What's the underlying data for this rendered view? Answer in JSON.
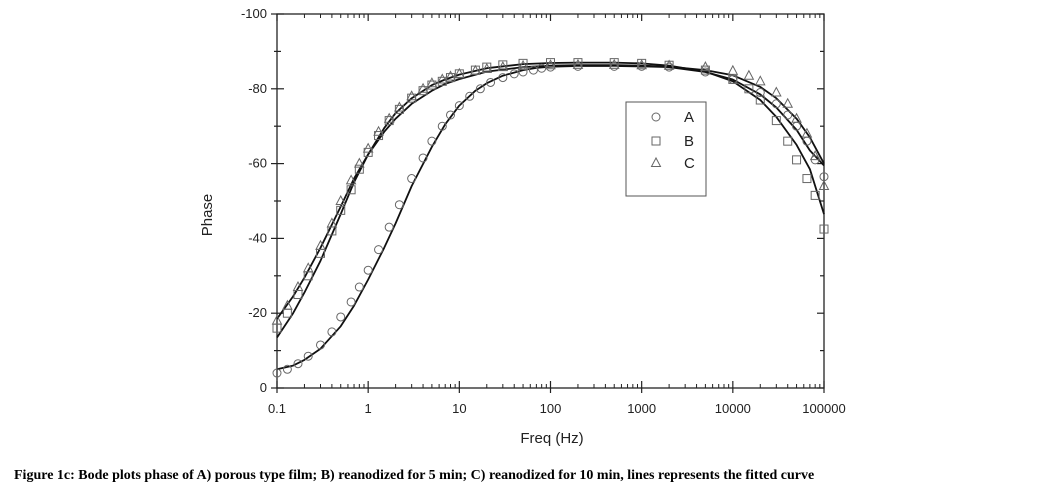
{
  "caption": "Figure 1c: Bode plots phase of A) porous type film; B) reanodized for 5 min; C) reanodized for 10 min, lines represents the fitted curve",
  "chart_data": {
    "type": "scatter",
    "xscale": "log",
    "xlim": [
      0.1,
      100000
    ],
    "ylim": [
      -100,
      0
    ],
    "xlabel": "Freq (Hz)",
    "ylabel": "Phase",
    "xticks": [
      "0.1",
      "1",
      "10",
      "100",
      "1000",
      "10000",
      "100000"
    ],
    "yticks": [
      "-100",
      "-80",
      "-60",
      "-40",
      "-20",
      "0"
    ],
    "legend_position": "upper-right-inside",
    "legend": [
      "A",
      "B",
      "C"
    ],
    "series": [
      {
        "name": "A",
        "marker": "circle",
        "x": [
          0.1,
          0.13,
          0.17,
          0.22,
          0.3,
          0.4,
          0.5,
          0.65,
          0.8,
          1,
          1.3,
          1.7,
          2.2,
          3,
          4,
          5,
          6.5,
          8,
          10,
          13,
          17,
          22,
          30,
          40,
          50,
          65,
          80,
          100,
          200,
          500,
          1000,
          2000,
          5000,
          10000,
          20000,
          30000,
          40000,
          50000,
          65000,
          80000,
          100000
        ],
        "y": [
          -4,
          -5,
          -6.5,
          -8.5,
          -11.5,
          -15,
          -19,
          -23,
          -27,
          -31.5,
          -37,
          -43,
          -49,
          -56,
          -61.5,
          -66,
          -70,
          -73,
          -75.5,
          -78,
          -80,
          -81.7,
          -83,
          -84,
          -84.5,
          -85,
          -85.5,
          -85.8,
          -86,
          -86,
          -86,
          -85.8,
          -84.5,
          -82.5,
          -79,
          -76,
          -73,
          -70,
          -66,
          -61,
          -56.5
        ]
      },
      {
        "name": "B",
        "marker": "square",
        "x": [
          0.1,
          0.13,
          0.17,
          0.22,
          0.3,
          0.4,
          0.5,
          0.65,
          0.8,
          1,
          1.3,
          1.7,
          2.2,
          3,
          4,
          5,
          6.5,
          8,
          10,
          15,
          20,
          30,
          50,
          100,
          200,
          500,
          1000,
          2000,
          5000,
          10000,
          15000,
          20000,
          30000,
          40000,
          50000,
          65000,
          80000,
          100000
        ],
        "y": [
          -16,
          -20,
          -25,
          -30,
          -36,
          -42,
          -47.5,
          -53,
          -58.5,
          -63,
          -67.5,
          -71.5,
          -74.5,
          -77.5,
          -79.5,
          -81,
          -82,
          -83,
          -84,
          -85,
          -85.8,
          -86.4,
          -86.8,
          -87,
          -87,
          -87,
          -86.8,
          -86.3,
          -85,
          -82.5,
          -80,
          -77,
          -71.5,
          -66,
          -61,
          -56,
          -51.5,
          -42.5
        ]
      },
      {
        "name": "C",
        "marker": "triangle",
        "x": [
          0.1,
          0.13,
          0.17,
          0.22,
          0.3,
          0.4,
          0.5,
          0.65,
          0.8,
          1,
          1.3,
          1.7,
          2.2,
          3,
          4,
          5,
          6.5,
          8,
          10,
          15,
          20,
          30,
          50,
          100,
          200,
          500,
          1000,
          2000,
          5000,
          10000,
          15000,
          20000,
          30000,
          40000,
          50000,
          65000,
          80000,
          100000
        ],
        "y": [
          -18,
          -22,
          -27,
          -32,
          -38,
          -44,
          -50,
          -55.5,
          -60,
          -64,
          -68.5,
          -72,
          -75,
          -78,
          -80,
          -81.5,
          -82.5,
          -83.3,
          -84,
          -84.8,
          -85.3,
          -85.8,
          -86.1,
          -86.3,
          -86.4,
          -86.4,
          -86.3,
          -86.2,
          -85.8,
          -84.8,
          -83.5,
          -82,
          -79,
          -76,
          -72,
          -68,
          -62,
          -54
        ]
      }
    ],
    "fit_lines": [
      {
        "name": "A",
        "x": [
          0.1,
          0.15,
          0.2,
          0.3,
          0.5,
          0.7,
          1,
          1.5,
          2,
          3,
          5,
          7,
          10,
          15,
          20,
          30,
          50,
          70,
          100,
          200,
          500,
          1000,
          2000,
          5000,
          10000,
          20000,
          30000,
          50000,
          70000,
          100000
        ],
        "y": [
          -5,
          -6,
          -7.5,
          -10.5,
          -16.5,
          -22,
          -29,
          -37.5,
          -44,
          -54,
          -64.5,
          -70.5,
          -75.5,
          -79.5,
          -81.5,
          -83.5,
          -85,
          -85.6,
          -85.9,
          -86.1,
          -86.1,
          -86,
          -85.8,
          -84.5,
          -82.5,
          -78.5,
          -75,
          -69,
          -63.5,
          -59.5
        ]
      },
      {
        "name": "B",
        "x": [
          0.1,
          0.15,
          0.2,
          0.3,
          0.5,
          0.7,
          1,
          1.5,
          2,
          3,
          5,
          7,
          10,
          20,
          50,
          100,
          200,
          500,
          1000,
          2000,
          5000,
          10000,
          20000,
          30000,
          50000,
          70000,
          100000
        ],
        "y": [
          -13.5,
          -20,
          -25.5,
          -34,
          -46.5,
          -55,
          -62.5,
          -69.5,
          -73.5,
          -77.5,
          -81,
          -82.5,
          -83.8,
          -85.5,
          -86.6,
          -86.9,
          -87,
          -87,
          -86.8,
          -86.2,
          -84.6,
          -82,
          -77,
          -72.5,
          -65,
          -58.5,
          -46.5
        ]
      },
      {
        "name": "C",
        "x": [
          0.1,
          0.15,
          0.2,
          0.3,
          0.5,
          0.7,
          1,
          1.5,
          2,
          3,
          5,
          7,
          10,
          20,
          50,
          100,
          200,
          500,
          1000,
          2000,
          5000,
          10000,
          20000,
          30000,
          50000,
          70000,
          100000
        ],
        "y": [
          -18.5,
          -24.5,
          -29.5,
          -37.5,
          -48.5,
          -56,
          -62.5,
          -68.5,
          -72,
          -76,
          -79.5,
          -81.3,
          -82.6,
          -84.6,
          -85.8,
          -86.2,
          -86.3,
          -86.3,
          -86.2,
          -85.9,
          -85,
          -83.6,
          -80.5,
          -77.5,
          -72,
          -67,
          -60
        ]
      }
    ]
  }
}
